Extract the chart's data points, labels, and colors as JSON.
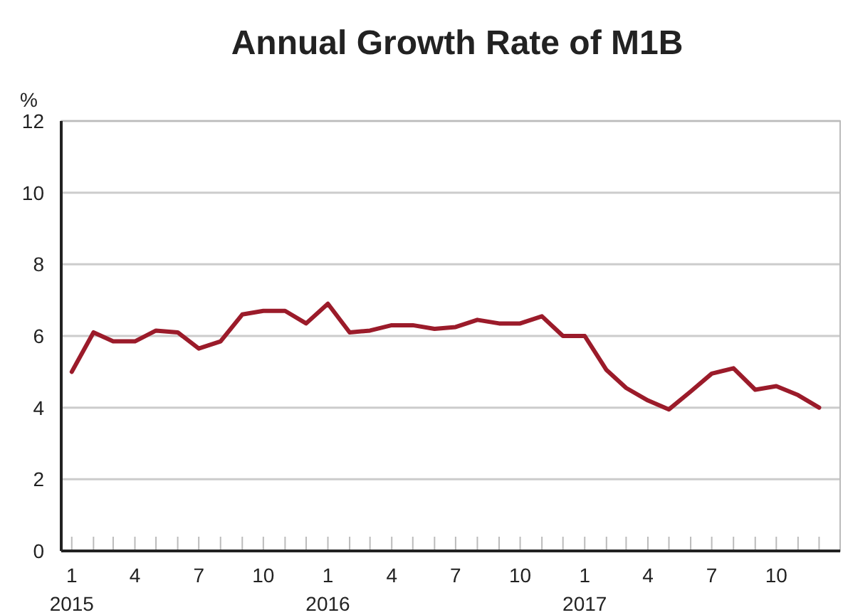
{
  "chart_data": {
    "type": "line",
    "title": "Annual Growth Rate of M1B",
    "ylabel": "%",
    "x": [
      "2015-01",
      "2015-02",
      "2015-03",
      "2015-04",
      "2015-05",
      "2015-06",
      "2015-07",
      "2015-08",
      "2015-09",
      "2015-10",
      "2015-11",
      "2015-12",
      "2016-01",
      "2016-02",
      "2016-03",
      "2016-04",
      "2016-05",
      "2016-06",
      "2016-07",
      "2016-08",
      "2016-09",
      "2016-10",
      "2016-11",
      "2016-12",
      "2017-01",
      "2017-02",
      "2017-03",
      "2017-04",
      "2017-05",
      "2017-06",
      "2017-07",
      "2017-08",
      "2017-09",
      "2017-10",
      "2017-11",
      "2017-12"
    ],
    "series": [
      {
        "color": "#9b1b2a",
        "values": [
          5.0,
          6.1,
          5.85,
          5.85,
          6.15,
          6.1,
          5.65,
          5.85,
          6.6,
          6.7,
          6.7,
          6.35,
          6.9,
          6.1,
          6.15,
          6.3,
          6.3,
          6.2,
          6.25,
          6.45,
          6.35,
          6.35,
          6.55,
          6.0,
          6.0,
          5.05,
          4.55,
          4.2,
          3.95,
          4.45,
          4.95,
          5.1,
          4.5,
          4.6,
          4.35,
          4.0
        ]
      }
    ],
    "xlim": [
      "2014-12-17",
      "2017-12-31"
    ],
    "xticks": [
      {
        "value": "2015-01",
        "label": "1\n2015"
      },
      {
        "value": "2015-02",
        "label": null
      },
      {
        "value": "2015-03",
        "label": null
      },
      {
        "value": "2015-04",
        "label": "4"
      },
      {
        "value": "2015-05",
        "label": null
      },
      {
        "value": "2015-06",
        "label": null
      },
      {
        "value": "2015-07",
        "label": "7"
      },
      {
        "value": "2015-08",
        "label": null
      },
      {
        "value": "2015-09",
        "label": null
      },
      {
        "value": "2015-10",
        "label": "10"
      },
      {
        "value": "2015-11",
        "label": null
      },
      {
        "value": "2015-12",
        "label": null
      },
      {
        "value": "2016-01",
        "label": "1\n2016"
      },
      {
        "value": "2016-02",
        "label": null
      },
      {
        "value": "2016-03",
        "label": null
      },
      {
        "value": "2016-04",
        "label": "4"
      },
      {
        "value": "2016-05",
        "label": null
      },
      {
        "value": "2016-06",
        "label": null
      },
      {
        "value": "2016-07",
        "label": "7"
      },
      {
        "value": "2016-08",
        "label": null
      },
      {
        "value": "2016-09",
        "label": null
      },
      {
        "value": "2016-10",
        "label": "10"
      },
      {
        "value": "2016-11",
        "label": null
      },
      {
        "value": "2016-12",
        "label": null
      },
      {
        "value": "2017-01",
        "label": "1\n2017"
      },
      {
        "value": "2017-02",
        "label": null
      },
      {
        "value": "2017-03",
        "label": null
      },
      {
        "value": "2017-04",
        "label": "4"
      },
      {
        "value": "2017-05",
        "label": null
      },
      {
        "value": "2017-06",
        "label": null
      },
      {
        "value": "2017-07",
        "label": "7"
      },
      {
        "value": "2017-08",
        "label": null
      },
      {
        "value": "2017-09",
        "label": null
      },
      {
        "value": "2017-10",
        "label": "10"
      },
      {
        "value": "2017-11",
        "label": null
      },
      {
        "value": "2017-12",
        "label": null
      }
    ],
    "ylim": [
      0,
      12
    ],
    "yticks": [
      0,
      2,
      4,
      6,
      8,
      10,
      12
    ],
    "grid": "y",
    "marker": "none",
    "line_style": "solid"
  }
}
